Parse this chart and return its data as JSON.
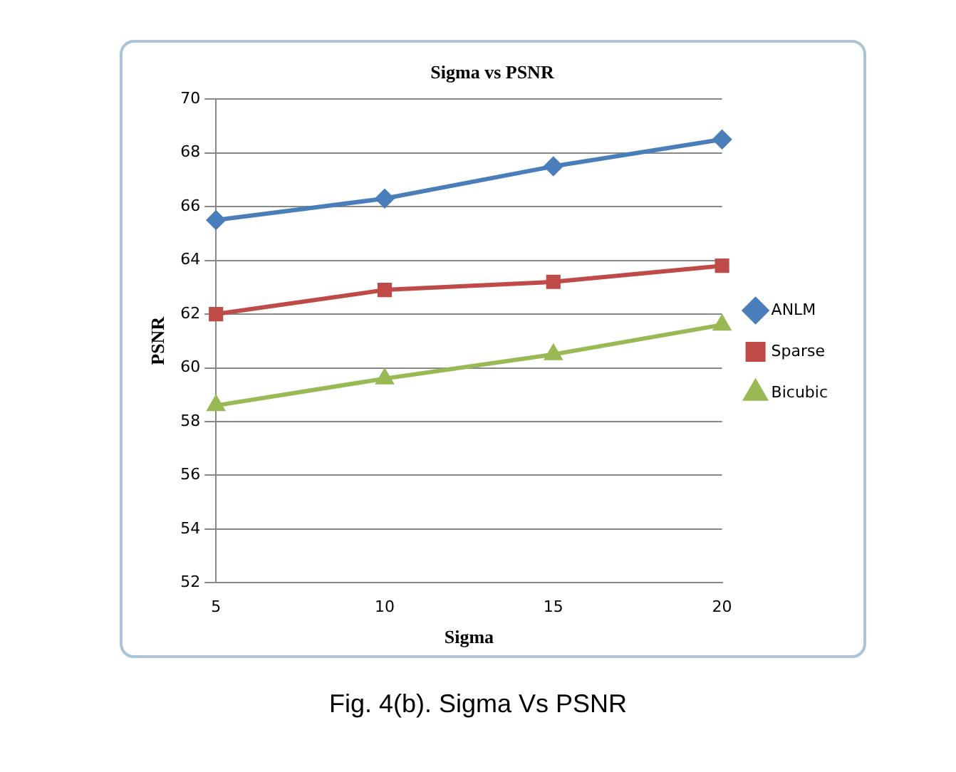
{
  "chart_data": {
    "type": "line",
    "title": "Sigma vs PSNR",
    "xlabel": "Sigma",
    "ylabel": "PSNR",
    "categories": [
      "5",
      "10",
      "15",
      "20"
    ],
    "series": [
      {
        "name": "ANLM",
        "color": "#4a7ebb",
        "marker": "diamond",
        "values": [
          65.5,
          66.3,
          67.5,
          68.5
        ]
      },
      {
        "name": "Sparse",
        "color": "#be4b48",
        "marker": "square",
        "values": [
          62.0,
          62.9,
          63.2,
          63.8
        ]
      },
      {
        "name": "Bicubic",
        "color": "#98b954",
        "marker": "triangle",
        "values": [
          58.6,
          59.6,
          60.5,
          61.6
        ]
      }
    ],
    "ylim": [
      52,
      70
    ],
    "yticks": [
      52,
      54,
      56,
      58,
      60,
      62,
      64,
      66,
      68,
      70
    ],
    "grid": "y",
    "legend": "right",
    "annotations": [
      "Fig. 4(b). Sigma Vs PSNR"
    ]
  }
}
